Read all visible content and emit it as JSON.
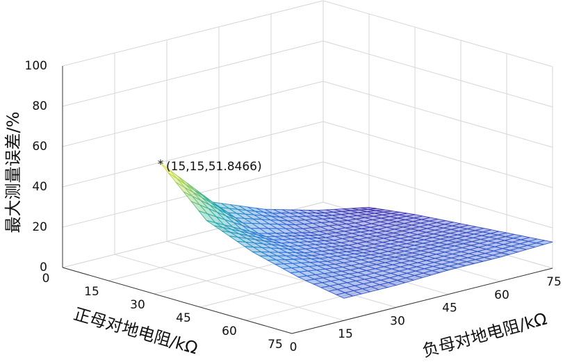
{
  "chart_data": {
    "type": "surface3d",
    "xlabel": "正母对地电阻/kΩ",
    "ylabel": "负母对地电阻/kΩ",
    "zlabel": "最大测量误差/%",
    "x": [
      15,
      30,
      45,
      60,
      75
    ],
    "y": [
      15,
      30,
      45,
      60,
      75
    ],
    "z": [
      [
        51.8466,
        26,
        16,
        9,
        4
      ],
      [
        30,
        17,
        11,
        8,
        7
      ],
      [
        21,
        14,
        10,
        9,
        9
      ],
      [
        15,
        12,
        11,
        11,
        11
      ],
      [
        11,
        11,
        12,
        12,
        13
      ]
    ],
    "xlim": [
      0,
      75
    ],
    "ylim": [
      0,
      75
    ],
    "zlim": [
      0,
      100
    ],
    "xticks": [
      0,
      15,
      30,
      45,
      60,
      75
    ],
    "yticks": [
      0,
      15,
      30,
      45,
      60,
      75
    ],
    "zticks": [
      0,
      20,
      40,
      60,
      80,
      100
    ],
    "grid": true,
    "annotation": {
      "text": "(15,15,51.8466)",
      "marker": "*"
    }
  }
}
